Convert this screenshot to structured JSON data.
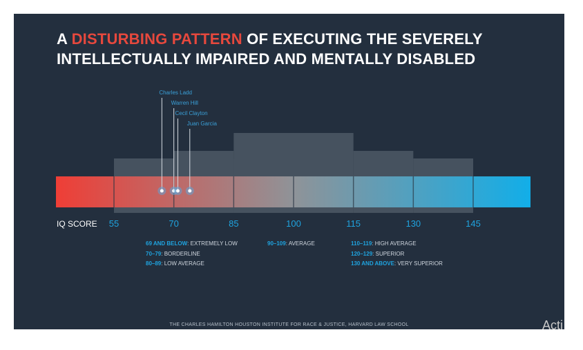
{
  "title": {
    "part1": "A ",
    "highlight": "DISTURBING PATTERN",
    "part2": " OF EXECUTING THE SEVERELY INTELLECTUALLY IMPAIRED AND MENTALLY DISABLED"
  },
  "colors": {
    "background": "#232f3e",
    "accent": "#e6483d",
    "tick_blue": "#1fa4e0",
    "band_gray": "#46525f",
    "gradient_red": "#ef3e36",
    "gradient_gray": "#8f9398",
    "gradient_blue": "#12aee8"
  },
  "chart_data": {
    "type": "distribution-bar",
    "xlabel": "IQ SCORE",
    "ticks": [
      55,
      70,
      85,
      100,
      115,
      130,
      145
    ],
    "xlim": [
      42,
      160
    ],
    "bands": [
      {
        "from": 55,
        "to": 85,
        "level": 1
      },
      {
        "from": 70,
        "to": 85,
        "level": 2
      },
      {
        "from": 85,
        "to": 115,
        "level": 3
      },
      {
        "from": 115,
        "to": 130,
        "level": 2
      },
      {
        "from": 130,
        "to": 145,
        "level": 1
      }
    ],
    "people": [
      {
        "name": "Charles Ladd",
        "iq": 67
      },
      {
        "name": "Warren Hill",
        "iq": 70
      },
      {
        "name": "Cecil Clayton",
        "iq": 71
      },
      {
        "name": "Juan Garcia",
        "iq": 74
      }
    ]
  },
  "legend": {
    "col1": [
      {
        "range": "69 AND BELOW",
        "label": ": EXTREMELY LOW"
      },
      {
        "range": "70–79",
        "label": ": BORDERLINE"
      },
      {
        "range": "80–89",
        "label": ": LOW AVERAGE"
      }
    ],
    "col2": [
      {
        "range": "90–109",
        "label": ": AVERAGE"
      }
    ],
    "col3": [
      {
        "range": "110–119",
        "label": ": HIGH AVERAGE"
      },
      {
        "range": "120–129",
        "label": ": SUPERIOR"
      },
      {
        "range": "130 AND ABOVE",
        "label": ": VERY SUPERIOR"
      }
    ]
  },
  "footer": "THE CHARLES HAMILTON HOUSTON INSTITUTE FOR RACE & JUSTICE, HARVARD LAW SCHOOL",
  "watermark": "Acti"
}
